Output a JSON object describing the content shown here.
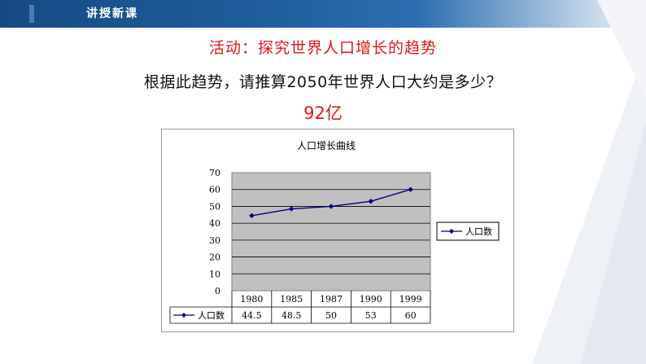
{
  "header": {
    "label": "讲授新课"
  },
  "slide": {
    "activity_title": "活动：探究世界人口增长的趋势",
    "question": "根据此趋势，请推算2050年世界人口大约是多少？",
    "answer": "92亿"
  },
  "colors": {
    "header": "#1f5d9c",
    "accent_red": "#e0170f",
    "plot_area": "#c0c0c0",
    "series_line": "#000080"
  },
  "chart_data": {
    "type": "line",
    "title": "人口增长曲线",
    "categories": [
      "1980",
      "1985",
      "1987",
      "1990",
      "1999"
    ],
    "series": [
      {
        "name": "人口数",
        "values": [
          44.5,
          48.5,
          50,
          53,
          60
        ],
        "value_labels": [
          "44.5",
          "48.5",
          "50",
          "53",
          "60"
        ]
      }
    ],
    "ylim": [
      0,
      70
    ],
    "yticks": [
      "0",
      "10",
      "20",
      "30",
      "40",
      "50",
      "60",
      "70"
    ],
    "grid": true,
    "legend": "right",
    "data_table": true
  }
}
